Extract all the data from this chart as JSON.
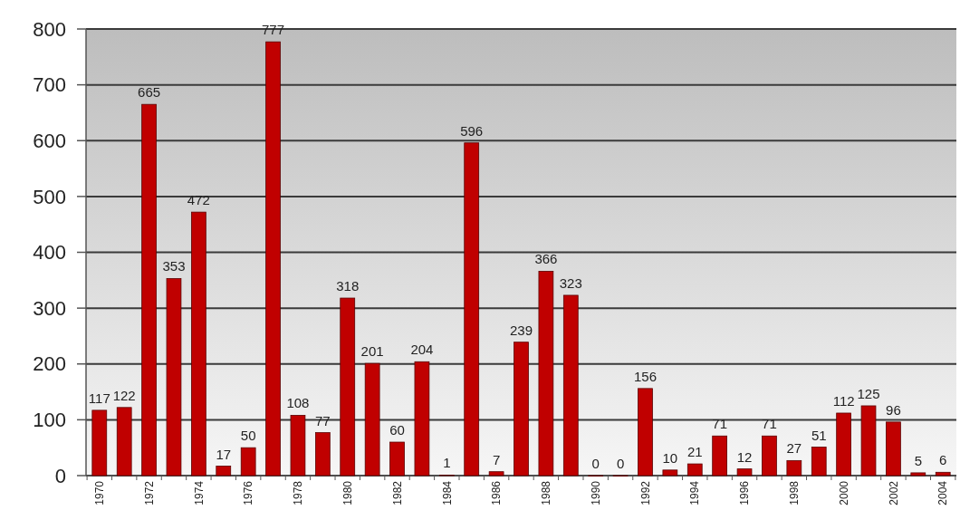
{
  "chart_data": {
    "type": "bar",
    "categories": [
      "1970",
      null,
      "1972",
      null,
      "1974",
      null,
      "1976",
      null,
      "1978",
      null,
      "1980",
      null,
      "1982",
      null,
      "1984",
      null,
      "1986",
      null,
      "1988",
      null,
      "1990",
      null,
      "1992",
      null,
      "1994",
      null,
      "1996",
      null,
      "1998",
      null,
      "2000",
      null,
      "2002",
      null,
      "2004"
    ],
    "values": [
      117,
      122,
      665,
      353,
      472,
      17,
      50,
      777,
      108,
      77,
      318,
      201,
      60,
      204,
      1,
      596,
      7,
      239,
      366,
      323,
      0,
      0,
      156,
      10,
      21,
      71,
      12,
      71,
      27,
      51,
      112,
      125,
      96,
      5,
      6
    ],
    "color": "#c00000",
    "ylim": [
      0,
      800
    ],
    "yticks": [
      0,
      100,
      200,
      300,
      400,
      500,
      600,
      700,
      800
    ],
    "grid": "y",
    "data_labels": true
  }
}
